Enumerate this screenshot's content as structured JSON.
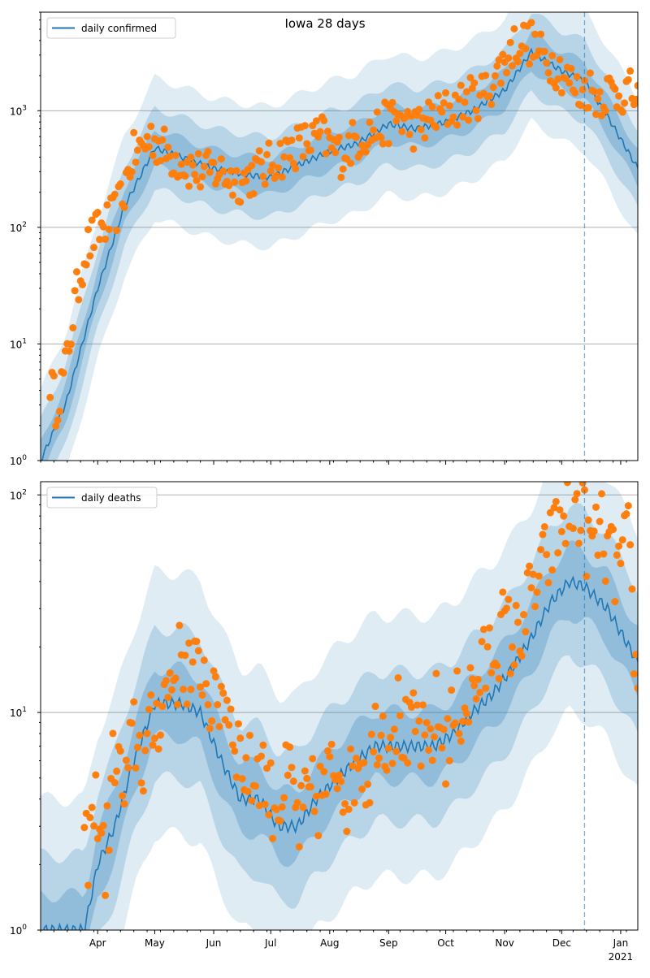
{
  "figure_title": "Iowa 28 days",
  "colors": {
    "model_line": "#1f77b4",
    "observed_points": "#ff7f0e",
    "band": "#1f77b4",
    "grid": "#b0b0b0",
    "divider": "#1f77b4"
  },
  "chart_data": [
    {
      "type": "line",
      "panel": "top",
      "title": "Iowa 28 days",
      "legend": {
        "label": "daily confirmed",
        "placement": "upper-left"
      },
      "yscale": "log",
      "ylim": [
        1,
        7000
      ],
      "y_ticks": [
        "10^0",
        "10^1",
        "10^2",
        "10^3"
      ],
      "x_ticks": [
        "Apr",
        "May",
        "Jun",
        "Jul",
        "Aug",
        "Sep",
        "Oct",
        "Nov",
        "Dec",
        "Jan"
      ],
      "x_secondary_label": "2021",
      "xlim": [
        "2020-03-02",
        "2021-01-10"
      ],
      "forecast_start": "2020-12-13",
      "grid": "y",
      "series": [
        {
          "name": "daily confirmed",
          "kind": "median",
          "x": [
            "2020-03-02",
            "2020-03-15",
            "2020-04-01",
            "2020-04-15",
            "2020-05-01",
            "2020-05-15",
            "2020-06-01",
            "2020-06-20",
            "2020-07-01",
            "2020-07-15",
            "2020-08-01",
            "2020-08-15",
            "2020-09-01",
            "2020-09-15",
            "2020-10-01",
            "2020-10-15",
            "2020-11-01",
            "2020-11-15",
            "2020-12-01",
            "2020-12-13",
            "2020-12-25",
            "2021-01-10"
          ],
          "values": [
            1,
            3,
            30,
            150,
            480,
            400,
            320,
            280,
            270,
            340,
            450,
            520,
            770,
            700,
            800,
            1000,
            1500,
            3200,
            2200,
            1800,
            900,
            320
          ]
        },
        {
          "name": "observed",
          "kind": "points",
          "x": [
            "2020-03-07",
            "2020-03-10",
            "2020-03-15",
            "2020-03-20",
            "2020-03-25",
            "2020-03-30",
            "2020-04-04",
            "2020-04-09",
            "2020-04-14",
            "2020-04-19",
            "2020-04-24",
            "2020-04-29",
            "2020-05-04",
            "2020-05-09",
            "2020-05-14",
            "2020-05-19",
            "2020-05-24",
            "2020-05-29",
            "2020-06-03",
            "2020-06-08",
            "2020-06-13",
            "2020-06-18",
            "2020-06-23",
            "2020-06-28",
            "2020-07-03",
            "2020-07-08",
            "2020-07-13",
            "2020-07-18",
            "2020-07-23",
            "2020-07-28",
            "2020-08-02",
            "2020-08-07",
            "2020-08-12",
            "2020-08-17",
            "2020-08-22",
            "2020-08-27",
            "2020-09-01",
            "2020-09-06",
            "2020-09-11",
            "2020-09-16",
            "2020-09-21",
            "2020-09-26",
            "2020-10-01",
            "2020-10-06",
            "2020-10-11",
            "2020-10-16",
            "2020-10-21",
            "2020-10-26",
            "2020-10-31",
            "2020-11-05",
            "2020-11-10",
            "2020-11-15",
            "2020-11-20",
            "2020-11-25",
            "2020-11-30",
            "2020-12-05",
            "2020-12-10",
            "2020-12-15",
            "2020-12-20",
            "2020-12-25",
            "2020-12-30",
            "2021-01-04",
            "2021-01-09"
          ],
          "values": [
            5,
            3,
            6,
            22,
            60,
            85,
            100,
            120,
            180,
            400,
            480,
            600,
            500,
            420,
            380,
            330,
            300,
            290,
            310,
            280,
            250,
            260,
            300,
            320,
            380,
            420,
            480,
            520,
            560,
            600,
            480,
            420,
            520,
            600,
            650,
            700,
            800,
            900,
            750,
            700,
            820,
            900,
            1000,
            1100,
            1200,
            1300,
            1400,
            1800,
            2500,
            3500,
            4000,
            3800,
            3000,
            2700,
            2300,
            1800,
            1400,
            1600,
            1300,
            1500,
            1400,
            1500,
            1300
          ]
        }
      ]
    },
    {
      "type": "line",
      "panel": "bottom",
      "legend": {
        "label": "daily deaths",
        "placement": "upper-left"
      },
      "yscale": "log",
      "ylim": [
        1,
        115
      ],
      "y_ticks": [
        "10^0",
        "10^1",
        "10^2"
      ],
      "x_ticks": [
        "Apr",
        "May",
        "Jun",
        "Jul",
        "Aug",
        "Sep",
        "Oct",
        "Nov",
        "Dec",
        "Jan"
      ],
      "x_secondary_label": "2021",
      "xlim": [
        "2020-03-02",
        "2021-01-10"
      ],
      "forecast_start": "2020-12-13",
      "grid": "y",
      "series": [
        {
          "name": "daily deaths",
          "kind": "median",
          "x": [
            "2020-03-02",
            "2020-03-25",
            "2020-04-01",
            "2020-04-10",
            "2020-04-20",
            "2020-05-01",
            "2020-05-15",
            "2020-05-25",
            "2020-06-05",
            "2020-06-15",
            "2020-06-25",
            "2020-07-05",
            "2020-07-15",
            "2020-07-25",
            "2020-08-05",
            "2020-08-15",
            "2020-08-25",
            "2020-09-05",
            "2020-09-15",
            "2020-09-25",
            "2020-10-05",
            "2020-10-15",
            "2020-10-25",
            "2020-11-05",
            "2020-11-15",
            "2020-11-25",
            "2020-12-05",
            "2020-12-13",
            "2020-12-25",
            "2021-01-10"
          ],
          "values": [
            1,
            1,
            2,
            3,
            6,
            11,
            11,
            10,
            6,
            4,
            4,
            3,
            3,
            4,
            5,
            6,
            7,
            7,
            7,
            7,
            8,
            10,
            12,
            16,
            22,
            32,
            40,
            38,
            30,
            17
          ]
        },
        {
          "name": "observed",
          "kind": "points",
          "x": [
            "2020-03-25",
            "2020-04-01",
            "2020-04-05",
            "2020-04-10",
            "2020-04-15",
            "2020-04-20",
            "2020-04-25",
            "2020-05-01",
            "2020-05-06",
            "2020-05-11",
            "2020-05-16",
            "2020-05-21",
            "2020-05-26",
            "2020-06-01",
            "2020-06-06",
            "2020-06-11",
            "2020-06-16",
            "2020-06-21",
            "2020-06-26",
            "2020-07-01",
            "2020-07-06",
            "2020-07-11",
            "2020-07-16",
            "2020-07-21",
            "2020-07-26",
            "2020-08-01",
            "2020-08-06",
            "2020-08-11",
            "2020-08-16",
            "2020-08-21",
            "2020-08-26",
            "2020-09-01",
            "2020-09-06",
            "2020-09-11",
            "2020-09-16",
            "2020-09-21",
            "2020-09-26",
            "2020-10-01",
            "2020-10-06",
            "2020-10-11",
            "2020-10-16",
            "2020-10-21",
            "2020-10-26",
            "2020-11-01",
            "2020-11-06",
            "2020-11-11",
            "2020-11-16",
            "2020-11-21",
            "2020-11-26",
            "2020-12-01",
            "2020-12-06",
            "2020-12-11",
            "2020-12-16",
            "2020-12-21",
            "2020-12-26",
            "2020-12-31",
            "2021-01-05",
            "2021-01-09"
          ],
          "values": [
            2,
            4,
            2,
            7,
            4,
            8,
            6,
            9,
            12,
            15,
            18,
            14,
            17,
            10,
            13,
            9,
            6,
            5,
            6,
            4,
            4,
            5,
            3,
            4,
            4,
            5,
            6,
            4,
            7,
            5,
            9,
            8,
            10,
            7,
            9,
            6,
            10,
            7,
            10,
            11,
            13,
            16,
            20,
            25,
            20,
            28,
            35,
            45,
            60,
            75,
            90,
            85,
            55,
            70,
            50,
            45,
            60,
            15
          ]
        }
      ]
    }
  ]
}
